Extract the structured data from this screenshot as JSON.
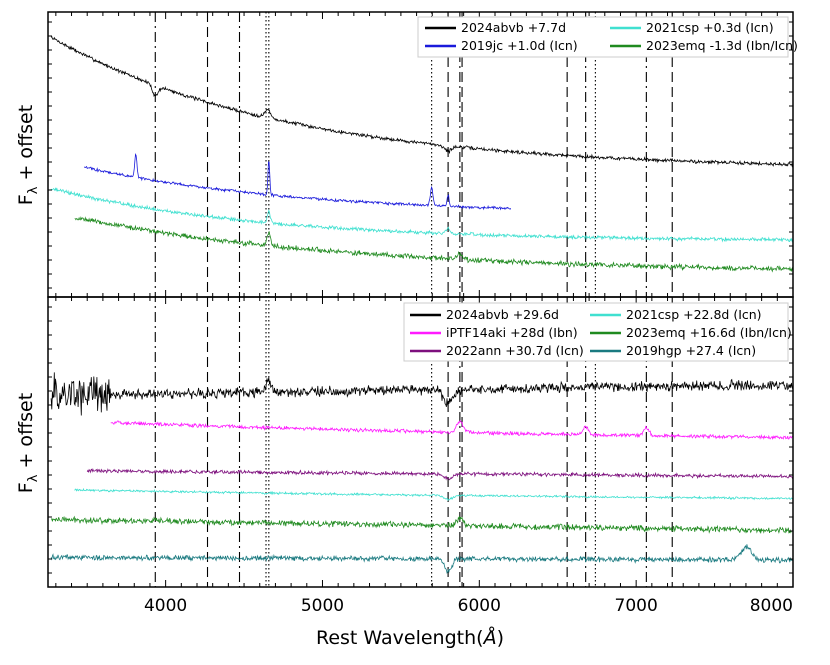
{
  "chart_data": {
    "type": "line",
    "xlabel": "Rest Wavelength",
    "xlabel_unit": "Å",
    "ylabel": "F",
    "ylabel_subscript": "λ",
    "ylabel_suffix": " + offset",
    "xlim": [
      3250,
      8000
    ],
    "x_ticks": [
      4000,
      5000,
      6000,
      7000,
      8000
    ],
    "reference_lines": [
      {
        "x": 3934,
        "style": "dashdot"
      },
      {
        "x": 4267,
        "style": "dashed"
      },
      {
        "x": 4471,
        "style": "dashdot"
      },
      {
        "x": 4640,
        "style": "dotted"
      },
      {
        "x": 4658,
        "style": "dotted"
      },
      {
        "x": 5696,
        "style": "dotted"
      },
      {
        "x": 5801,
        "style": "dashed"
      },
      {
        "x": 5876,
        "style": "dashdot"
      },
      {
        "x": 5890,
        "style": "dashed"
      },
      {
        "x": 6560,
        "style": "dashed"
      },
      {
        "x": 6678,
        "style": "dashdot"
      },
      {
        "x": 6740,
        "style": "dotted"
      },
      {
        "x": 7065,
        "style": "dashdot"
      },
      {
        "x": 7230,
        "style": "dashed"
      }
    ],
    "panels": [
      {
        "name": "early",
        "legend": [
          {
            "label": "2024abvb +7.7d",
            "color": "#000000"
          },
          {
            "label": "2021csp +0.3d (Icn)",
            "color": "#40e0d0"
          },
          {
            "label": "2019jc +1.0d (Icn)",
            "color": "#1a1adb"
          },
          {
            "label": "2023emq -1.3d (Ibn/Icn)",
            "color": "#1f8a1f"
          }
        ],
        "series": [
          {
            "name": "2024abvb +7.7d",
            "color": "#000000",
            "x_start": 3270,
            "x_end": 8000,
            "y_start": 0.95,
            "y_end": 0.45,
            "curve": 1.6,
            "noise": 0.01,
            "features": [
              [
                3934,
                -0.04,
                25
              ],
              [
                4650,
                0.03,
                25
              ],
              [
                5800,
                -0.02,
                30
              ]
            ]
          },
          {
            "name": "2019jc +1.0d (Icn)",
            "color": "#1a1adb",
            "x_start": 3480,
            "x_end": 6200,
            "y_start": 0.46,
            "y_end": 0.28,
            "curve": 1.0,
            "noise": 0.008,
            "features": [
              [
                3810,
                0.09,
                10
              ],
              [
                4658,
                0.13,
                8
              ],
              [
                5696,
                0.07,
                12
              ],
              [
                5801,
                0.04,
                10
              ]
            ]
          },
          {
            "name": "2021csp +0.3d (Icn)",
            "color": "#40e0d0",
            "x_start": 3270,
            "x_end": 8000,
            "y_start": 0.38,
            "y_end": 0.18,
            "curve": 1.8,
            "noise": 0.01,
            "features": [
              [
                4658,
                0.04,
                15
              ],
              [
                5801,
                0.02,
                20
              ]
            ]
          },
          {
            "name": "2023emq -1.3d (Ibn/Icn)",
            "color": "#1f8a1f",
            "x_start": 3420,
            "x_end": 8000,
            "y_start": 0.27,
            "y_end": 0.06,
            "curve": 1.3,
            "noise": 0.014,
            "features": [
              [
                4658,
                0.05,
                15
              ],
              [
                5876,
                0.02,
                25
              ]
            ]
          }
        ]
      },
      {
        "name": "late",
        "legend": [
          {
            "label": "2024abvb +29.6d",
            "color": "#000000"
          },
          {
            "label": "2021csp +22.8d (Icn)",
            "color": "#40e0d0"
          },
          {
            "label": "iPTF14aki +28d (Ibn)",
            "color": "#ff1aff"
          },
          {
            "label": "2023emq +16.6d (Ibn/Icn)",
            "color": "#1f8a1f"
          },
          {
            "label": "2022ann +30.7d (Icn)",
            "color": "#7d0f7d"
          },
          {
            "label": "2019hgp +27.4 (Icn)",
            "color": "#1a7a80"
          }
        ],
        "series": [
          {
            "name": "2024abvb +29.6d",
            "color": "#000000",
            "x_start": 3270,
            "x_end": 8000,
            "y_start": 0.68,
            "y_end": 0.72,
            "curve": 0,
            "noise": 0.028,
            "features": [
              [
                4658,
                0.05,
                20
              ],
              [
                5800,
                -0.05,
                40
              ]
            ]
          },
          {
            "name": "iPTF14aki +28d (Ibn)",
            "color": "#ff1aff",
            "x_start": 3650,
            "x_end": 8000,
            "y_start": 0.58,
            "y_end": 0.5,
            "curve": 0.6,
            "noise": 0.01,
            "features": [
              [
                5876,
                0.04,
                30
              ],
              [
                6678,
                0.03,
                25
              ],
              [
                7065,
                0.03,
                25
              ]
            ]
          },
          {
            "name": "2022ann +30.7d (Icn)",
            "color": "#7d0f7d",
            "x_start": 3500,
            "x_end": 8000,
            "y_start": 0.4,
            "y_end": 0.38,
            "curve": 0,
            "noise": 0.01,
            "features": [
              [
                5801,
                -0.02,
                40
              ]
            ]
          },
          {
            "name": "2021csp +22.8d (Icn)",
            "color": "#40e0d0",
            "x_start": 3420,
            "x_end": 8000,
            "y_start": 0.33,
            "y_end": 0.28,
            "curve": 0.5,
            "noise": 0.006,
            "features": [
              [
                5801,
                -0.015,
                40
              ]
            ]
          },
          {
            "name": "2023emq +16.6d (Ibn/Icn)",
            "color": "#1f8a1f",
            "x_start": 3270,
            "x_end": 8000,
            "y_start": 0.22,
            "y_end": 0.18,
            "curve": 0,
            "noise": 0.016,
            "features": [
              [
                5876,
                0.03,
                25
              ]
            ]
          },
          {
            "name": "2019hgp +27.4 (Icn)",
            "color": "#1a7a80",
            "x_start": 3270,
            "x_end": 8000,
            "y_start": 0.08,
            "y_end": 0.07,
            "curve": 0,
            "noise": 0.014,
            "features": [
              [
                5801,
                -0.05,
                30
              ],
              [
                7700,
                0.05,
                45
              ]
            ]
          }
        ]
      }
    ]
  }
}
